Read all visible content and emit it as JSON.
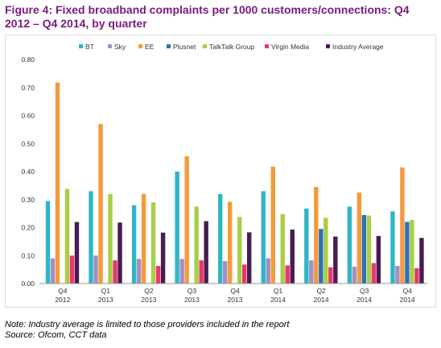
{
  "figure": {
    "title": "Figure 4: Fixed broadband complaints per 1000 customers/connections: Q4 2012 – Q4 2014, by quarter",
    "note": "Note: Industry average is limited to those providers included in the report",
    "source": "Source: Ofcom, CCT data"
  },
  "chart_data": {
    "type": "bar",
    "title": "",
    "xlabel": "",
    "ylabel": "",
    "ylim": [
      0,
      0.8
    ],
    "yticks": [
      "0.00",
      "0.10",
      "0.20",
      "0.30",
      "0.40",
      "0.50",
      "0.60",
      "0.70",
      "0.80"
    ],
    "grid": false,
    "legend_position": "top",
    "categories": [
      [
        "Q4",
        "2012"
      ],
      [
        "Q1",
        "2013"
      ],
      [
        "Q2",
        "2013"
      ],
      [
        "Q3",
        "2013"
      ],
      [
        "Q4",
        "2013"
      ],
      [
        "Q1",
        "2014"
      ],
      [
        "Q2",
        "2014"
      ],
      [
        "Q3",
        "2014"
      ],
      [
        "Q4",
        "2014"
      ]
    ],
    "series": [
      {
        "name": "BT",
        "color": "#2fb6c6",
        "values": [
          0.295,
          0.33,
          0.28,
          0.4,
          0.32,
          0.33,
          0.268,
          0.275,
          0.258
        ]
      },
      {
        "name": "Sky",
        "color": "#a48fc0",
        "values": [
          0.09,
          0.1,
          0.088,
          0.088,
          0.08,
          0.09,
          0.083,
          0.06,
          0.063
        ]
      },
      {
        "name": "EE",
        "color": "#f39a3c",
        "values": [
          0.718,
          0.57,
          0.32,
          0.455,
          0.292,
          0.418,
          0.345,
          0.325,
          0.415
        ]
      },
      {
        "name": "Plusnet",
        "color": "#2f6fb5",
        "values": [
          null,
          null,
          null,
          null,
          null,
          null,
          0.195,
          0.245,
          0.22
        ]
      },
      {
        "name": "TalkTalk Group",
        "color": "#a8cf45",
        "values": [
          0.338,
          0.32,
          0.29,
          0.275,
          0.238,
          0.248,
          0.235,
          0.243,
          0.227
        ]
      },
      {
        "name": "Virgin Media",
        "color": "#e8386f",
        "values": [
          0.1,
          0.083,
          0.063,
          0.083,
          0.068,
          0.065,
          0.058,
          0.073,
          0.055
        ]
      },
      {
        "name": "Industry Average",
        "color": "#4a1a52",
        "values": [
          0.22,
          0.218,
          0.182,
          0.223,
          0.183,
          0.193,
          0.168,
          0.17,
          0.163
        ]
      }
    ]
  }
}
